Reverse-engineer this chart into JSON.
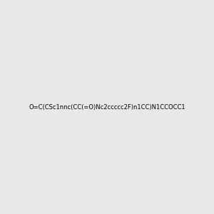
{
  "smiles": "O=C(CSc1nnc(CC(=O)Nc2ccccc2F)n1CC)N1CCOCC1",
  "image_size": 300,
  "background_color": "#e8e8e8",
  "title": ""
}
